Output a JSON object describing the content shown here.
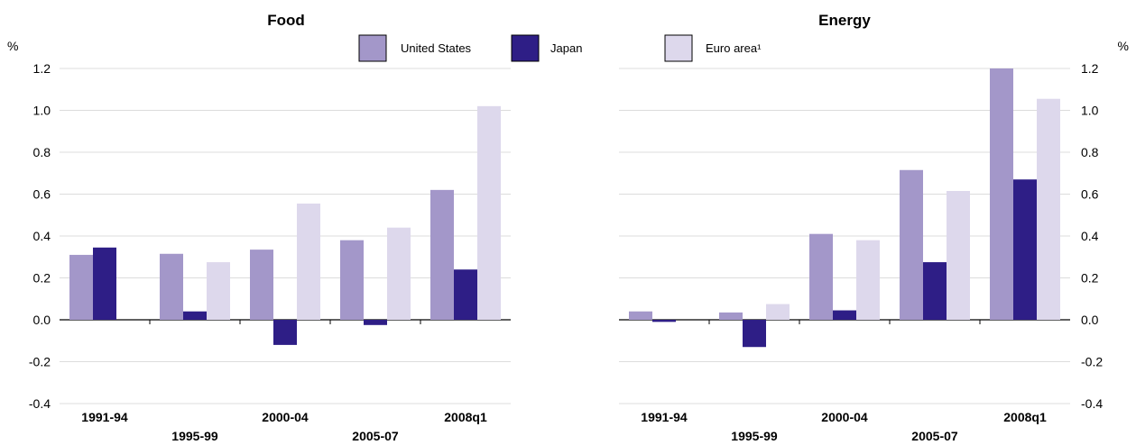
{
  "chart_data": [
    {
      "type": "bar",
      "title": "Food",
      "ylabel": "%",
      "ylim": [
        -0.4,
        1.2
      ],
      "yticks": [
        "-0.4",
        "-0.2",
        "0.0",
        "0.2",
        "0.4",
        "0.6",
        "0.8",
        "1.0",
        "1.2"
      ],
      "yaxis_side": "left",
      "categories": [
        "1991-94",
        "1995-99",
        "2000-04",
        "2005-07",
        "2008q1"
      ],
      "grid": true,
      "series": [
        {
          "name": "United States",
          "color": "#a397c9",
          "values": [
            0.31,
            0.315,
            0.335,
            0.38,
            0.62
          ]
        },
        {
          "name": "Japan",
          "color": "#2e1e86",
          "values": [
            0.345,
            0.04,
            -0.12,
            -0.025,
            0.24
          ]
        },
        {
          "name": "Euro area¹",
          "color": "#ddd8ec",
          "values": [
            null,
            0.275,
            0.555,
            0.44,
            1.02
          ]
        }
      ]
    },
    {
      "type": "bar",
      "title": "Energy",
      "ylabel": "%",
      "ylim": [
        -0.4,
        1.2
      ],
      "yticks": [
        "-0.4",
        "-0.2",
        "0.0",
        "0.2",
        "0.4",
        "0.6",
        "0.8",
        "1.0",
        "1.2"
      ],
      "yaxis_side": "right",
      "categories": [
        "1991-94",
        "1995-99",
        "2000-04",
        "2005-07",
        "2008q1"
      ],
      "grid": true,
      "series": [
        {
          "name": "United States",
          "color": "#a397c9",
          "values": [
            0.04,
            0.035,
            0.41,
            0.715,
            1.2
          ]
        },
        {
          "name": "Japan",
          "color": "#2e1e86",
          "values": [
            -0.01,
            -0.13,
            0.045,
            0.275,
            0.67
          ]
        },
        {
          "name": "Euro area¹",
          "color": "#ddd8ec",
          "values": [
            null,
            0.075,
            0.38,
            0.615,
            1.055
          ]
        }
      ]
    }
  ],
  "legend": {
    "placement": "top-center",
    "items": [
      {
        "label": "United States",
        "color": "#a397c9"
      },
      {
        "label": "Japan",
        "color": "#2e1e86"
      },
      {
        "label": "Euro area¹",
        "color": "#ddd8ec"
      }
    ]
  }
}
